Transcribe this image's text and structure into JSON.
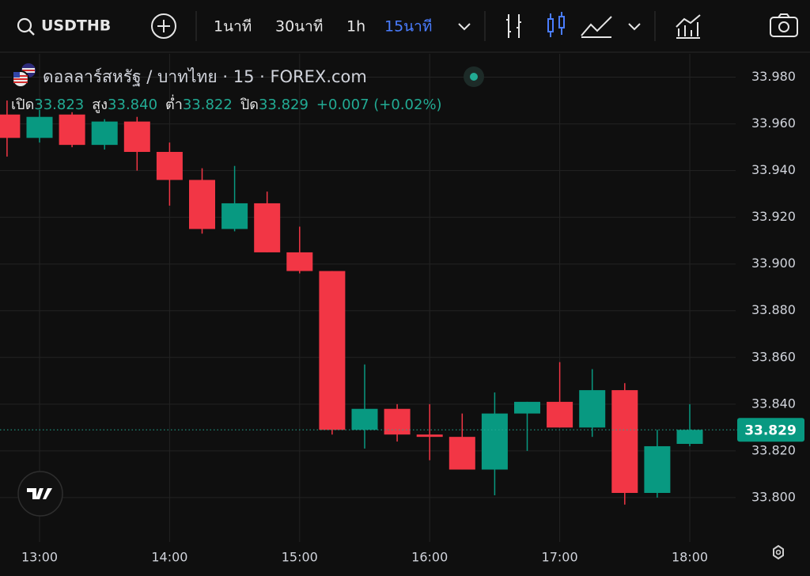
{
  "toolbar": {
    "symbol": "USDTHB",
    "intervals": [
      "1นาที",
      "30นาที",
      "1h",
      "15นาที"
    ],
    "active_interval": 3
  },
  "legend": {
    "title": "ดอลลาร์สหรัฐ / บาทไทย · 15 · FOREX.com",
    "items": [
      {
        "label": "เปิด",
        "value": "33.823"
      },
      {
        "label": "สูง",
        "value": "33.840"
      },
      {
        "label": "ต่ำ",
        "value": "33.822"
      },
      {
        "label": "ปิด",
        "value": "33.829"
      }
    ],
    "change": "+0.007 (+0.02%)"
  },
  "chart_data": {
    "type": "candlestick",
    "categories": [
      null,
      "13:00",
      null,
      null,
      null,
      "14:00",
      null,
      null,
      null,
      "15:00",
      null,
      null,
      null,
      "16:00",
      null,
      null,
      null,
      "17:00",
      null,
      null,
      null,
      "18:00"
    ],
    "open": [
      33.964,
      33.954,
      33.964,
      33.951,
      33.961,
      33.948,
      33.936,
      33.915,
      33.926,
      33.905,
      33.897,
      33.829,
      33.838,
      33.827,
      33.826,
      33.812,
      33.836,
      33.841,
      33.83,
      33.846,
      33.802,
      33.823
    ],
    "high": [
      33.97,
      33.966,
      33.965,
      33.962,
      33.963,
      33.952,
      33.941,
      33.942,
      33.931,
      33.916,
      33.897,
      33.857,
      33.84,
      33.84,
      33.836,
      33.845,
      33.841,
      33.858,
      33.855,
      33.849,
      33.829,
      33.84
    ],
    "low": [
      33.946,
      33.952,
      33.95,
      33.949,
      33.94,
      33.925,
      33.913,
      33.914,
      33.905,
      33.896,
      33.827,
      33.821,
      33.824,
      33.816,
      33.812,
      33.801,
      33.82,
      33.83,
      33.826,
      33.797,
      33.8,
      33.822
    ],
    "close": [
      33.954,
      33.963,
      33.951,
      33.961,
      33.948,
      33.936,
      33.915,
      33.926,
      33.905,
      33.897,
      33.829,
      33.838,
      33.827,
      33.826,
      33.812,
      33.836,
      33.841,
      33.83,
      33.846,
      33.802,
      33.822,
      33.829
    ],
    "up_color": "#089981",
    "down_color": "#f23645",
    "ylim": [
      33.781,
      33.99
    ],
    "yticks": [
      {
        "value": 33.8,
        "label": "33.800"
      },
      {
        "value": 33.82,
        "label": "33.820"
      },
      {
        "value": 33.84,
        "label": "33.840"
      },
      {
        "value": 33.86,
        "label": "33.860"
      },
      {
        "value": 33.88,
        "label": "33.880"
      },
      {
        "value": 33.9,
        "label": "33.900"
      },
      {
        "value": 33.92,
        "label": "33.920"
      },
      {
        "value": 33.94,
        "label": "33.940"
      },
      {
        "value": 33.96,
        "label": "33.960"
      },
      {
        "value": 33.98,
        "label": "33.980"
      }
    ],
    "last_price": 33.829,
    "grid": true
  }
}
